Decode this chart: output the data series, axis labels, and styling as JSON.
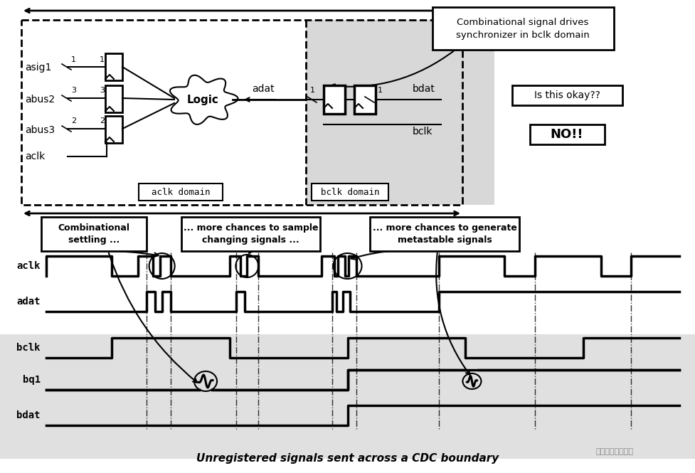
{
  "title": "Unregistered signals sent across a CDC boundary",
  "bg_color": "#ffffff",
  "gray_bg": "#d8d8d8",
  "top_annotation": "Combinational signal drives\nsynchronizer in bclk domain",
  "box1_text": "Is this okay??",
  "box2_text": "NO!!",
  "aclk_domain_label": "aclk domain",
  "bclk_domain_label": "bclk domain",
  "signal_names": [
    "asig1",
    "abus2",
    "abus3",
    "aclk"
  ],
  "waveform_labels": [
    "aclk",
    "adat",
    "bclk",
    "bq1",
    "bdat"
  ],
  "annotation1": "Combinational\nsettling ...",
  "annotation2": "... more chances to sample\nchanging signals ...",
  "annotation3": "... more chances to generate\nmetastable signals",
  "watermark": "芗片设计进阶之路"
}
